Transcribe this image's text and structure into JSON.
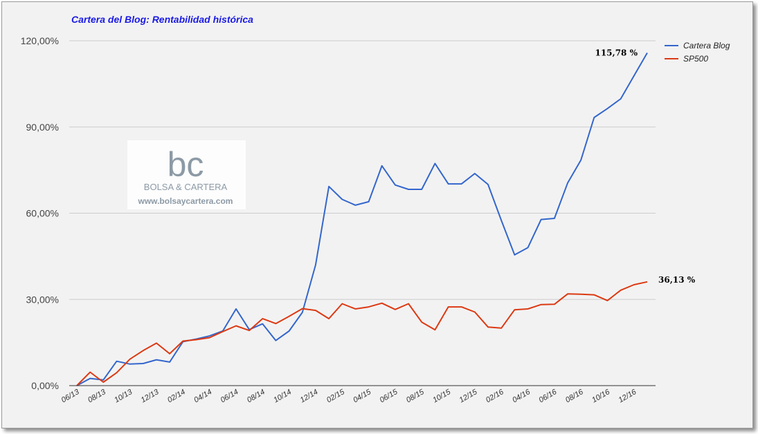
{
  "chart_data": {
    "type": "line",
    "title": "Cartera del Blog: Rentabilidad histórica",
    "xlabel": "",
    "ylabel": "",
    "ylim": [
      0,
      120
    ],
    "yticks": [
      "0,00%",
      "30,00%",
      "60,00%",
      "90,00%",
      "120,00%"
    ],
    "grid": true,
    "legend_position": "top-right",
    "x": [
      "06/13",
      "07/13",
      "08/13",
      "09/13",
      "10/13",
      "11/13",
      "12/13",
      "01/14",
      "02/14",
      "03/14",
      "04/14",
      "05/14",
      "06/14",
      "07/14",
      "08/14",
      "09/14",
      "10/14",
      "11/14",
      "12/14",
      "01/15",
      "02/15",
      "03/15",
      "04/15",
      "05/15",
      "06/15",
      "07/15",
      "08/15",
      "09/15",
      "10/15",
      "11/15",
      "12/15",
      "01/16",
      "02/16",
      "03/16",
      "04/16",
      "05/16",
      "06/16",
      "07/16",
      "08/16",
      "09/16",
      "10/16",
      "11/16",
      "12/16",
      "01/17"
    ],
    "xtick_labels": [
      "06/13",
      "08/13",
      "10/13",
      "12/13",
      "02/14",
      "04/14",
      "06/14",
      "08/14",
      "10/14",
      "12/14",
      "02/15",
      "04/15",
      "06/15",
      "08/15",
      "10/15",
      "12/15",
      "02/16",
      "04/16",
      "06/16",
      "08/16",
      "10/16",
      "12/16"
    ],
    "series": [
      {
        "name": "Cartera Blog",
        "color": "#3366cc",
        "values": [
          0,
          2.5,
          2,
          8.5,
          7.5,
          7.7,
          9,
          8.2,
          15.3,
          16.2,
          17.3,
          19,
          26.7,
          19.5,
          21.5,
          15.7,
          19,
          25.5,
          42,
          69.3,
          64.8,
          62.8,
          64,
          76.5,
          69.8,
          68.3,
          68.3,
          77.3,
          70.2,
          70.2,
          73.8,
          70,
          57.5,
          45.5,
          48,
          57.8,
          58.2,
          70.5,
          78.5,
          93.3,
          96.4,
          99.8,
          107.8,
          115.78
        ]
      },
      {
        "name": "SP500",
        "color": "#dc3912",
        "values": [
          0,
          4.7,
          1.2,
          4.5,
          9.2,
          12.2,
          14.8,
          11.1,
          15.5,
          16,
          16.7,
          18.8,
          20.8,
          19.2,
          23.3,
          21.6,
          24.1,
          26.8,
          26.2,
          23.3,
          28.5,
          26.7,
          27.4,
          28.7,
          26.5,
          28.5,
          22.1,
          19.4,
          27.4,
          27.4,
          25.6,
          20.4,
          20,
          26.4,
          26.7,
          28.2,
          28.3,
          31.9,
          31.8,
          31.6,
          29.6,
          33.2,
          35.1,
          36.13
        ]
      }
    ],
    "annotations": [
      {
        "series": "Cartera Blog",
        "text": "115,78 %"
      },
      {
        "series": "SP500",
        "text": "36,13 %"
      }
    ]
  },
  "watermark": {
    "logo": "bc",
    "name": "BOLSA & CARTERA",
    "url": "www.bolsaycartera.com"
  }
}
